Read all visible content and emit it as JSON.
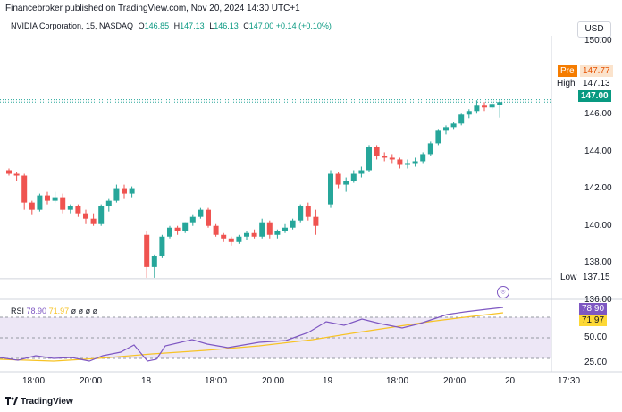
{
  "header": {
    "publisher": "Financebroker published on TradingView.com, Nov 20, 2024 14:30 UTC+1"
  },
  "legend": {
    "symbol": "NVIDIA Corporation, 15, NASDAQ",
    "o_label": "O",
    "o_value": "146.85",
    "h_label": "H",
    "h_value": "147.13",
    "l_label": "L",
    "l_value": "146.13",
    "c_label": "C",
    "c_value": "147.00",
    "change": "+0.14 (+0.10%)"
  },
  "currency": "USD",
  "price_axis": {
    "ticks": [
      "150.00",
      "146.00",
      "144.00",
      "142.00",
      "140.00",
      "138.00",
      "136.00"
    ]
  },
  "price_tags": {
    "pre_label": "Pre",
    "pre_value": "147.77",
    "high_label": "High",
    "high_value": "147.13",
    "last_value": "147.00",
    "low_label": "Low",
    "low_value": "137.15"
  },
  "rsi": {
    "label": "RSI",
    "value": "78.90",
    "ma_value": "71.97",
    "extra": "ø ø ø ø",
    "axis_ticks": [
      "50.00",
      "25.00"
    ],
    "tag_value": "78.90",
    "tag_ma": "71.97",
    "colors": {
      "rsi": "#7e57c2",
      "ma": "#f7c325",
      "band": "#ede7f6"
    }
  },
  "time_axis": {
    "labels": [
      "18:00",
      "20:00",
      "18",
      "18:00",
      "20:00",
      "19",
      "18:00",
      "20:00",
      "20",
      "17:30"
    ]
  },
  "footer": {
    "brand": "TradingView"
  },
  "colors": {
    "up": "#26a69a",
    "down": "#ef5350",
    "pre": "#f57c00",
    "rsi_tag": "#7e57c2",
    "ma_tag": "#fdd835"
  },
  "chart_data": {
    "type": "candlestick",
    "y_range": [
      136,
      150.7
    ],
    "candles": [
      [
        143.2,
        143.3,
        142.9,
        143.0
      ],
      [
        143.0,
        143.1,
        142.6,
        142.9
      ],
      [
        142.9,
        143.0,
        141.0,
        141.4
      ],
      [
        141.4,
        141.5,
        140.7,
        141.0
      ],
      [
        141.0,
        141.9,
        140.9,
        141.8
      ],
      [
        141.8,
        142.0,
        141.3,
        141.5
      ],
      [
        141.5,
        142.0,
        141.4,
        141.7
      ],
      [
        141.7,
        141.9,
        140.8,
        141.0
      ],
      [
        141.0,
        141.3,
        140.8,
        141.2
      ],
      [
        141.2,
        141.3,
        140.6,
        140.8
      ],
      [
        140.8,
        141.0,
        140.2,
        140.5
      ],
      [
        140.5,
        140.8,
        140.1,
        140.2
      ],
      [
        140.2,
        141.3,
        140.1,
        141.2
      ],
      [
        141.2,
        141.6,
        140.9,
        141.5
      ],
      [
        141.5,
        142.4,
        141.4,
        142.2
      ],
      [
        142.2,
        142.4,
        141.6,
        141.9
      ],
      [
        141.9,
        142.3,
        141.7,
        142.2
      ],
      [
        139.6,
        139.8,
        137.2,
        137.8
      ],
      [
        137.8,
        138.5,
        137.2,
        138.4
      ],
      [
        138.4,
        139.6,
        138.3,
        139.5
      ],
      [
        139.5,
        140.1,
        139.4,
        140.0
      ],
      [
        140.0,
        140.1,
        139.6,
        139.8
      ],
      [
        139.8,
        140.3,
        139.7,
        140.3
      ],
      [
        140.3,
        140.7,
        140.1,
        140.6
      ],
      [
        140.6,
        141.1,
        140.5,
        141.0
      ],
      [
        141.0,
        141.1,
        140.0,
        140.1
      ],
      [
        140.1,
        140.2,
        139.5,
        139.6
      ],
      [
        139.6,
        139.7,
        139.2,
        139.4
      ],
      [
        139.4,
        139.5,
        139.0,
        139.2
      ],
      [
        139.2,
        139.6,
        139.1,
        139.5
      ],
      [
        139.5,
        139.8,
        139.3,
        139.7
      ],
      [
        139.7,
        139.9,
        139.4,
        139.5
      ],
      [
        139.5,
        140.5,
        139.4,
        140.3
      ],
      [
        140.3,
        140.4,
        139.4,
        139.6
      ],
      [
        139.6,
        139.9,
        139.4,
        139.8
      ],
      [
        139.8,
        140.2,
        139.7,
        140.0
      ],
      [
        140.0,
        140.5,
        139.9,
        140.4
      ],
      [
        140.4,
        141.3,
        140.3,
        141.2
      ],
      [
        141.2,
        141.4,
        140.4,
        140.6
      ],
      [
        140.6,
        141.0,
        139.6,
        140.1
      ],
      [
        141.3,
        143.2,
        141.1,
        143.0
      ],
      [
        143.0,
        143.1,
        142.2,
        142.4
      ],
      [
        142.4,
        142.8,
        142.0,
        142.6
      ],
      [
        142.6,
        143.2,
        142.5,
        143.0
      ],
      [
        143.0,
        143.4,
        142.8,
        143.2
      ],
      [
        143.2,
        144.6,
        143.1,
        144.5
      ],
      [
        144.5,
        144.6,
        143.8,
        144.0
      ],
      [
        144.0,
        144.2,
        143.7,
        143.9
      ],
      [
        143.9,
        144.1,
        143.6,
        143.8
      ],
      [
        143.8,
        143.9,
        143.3,
        143.5
      ],
      [
        143.5,
        143.8,
        143.3,
        143.6
      ],
      [
        143.6,
        143.9,
        143.4,
        143.7
      ],
      [
        143.7,
        144.2,
        143.6,
        144.1
      ],
      [
        144.1,
        144.8,
        144.0,
        144.7
      ],
      [
        144.7,
        145.5,
        144.6,
        145.4
      ],
      [
        145.4,
        145.7,
        145.2,
        145.6
      ],
      [
        145.6,
        145.9,
        145.5,
        145.8
      ],
      [
        145.8,
        146.4,
        145.7,
        146.3
      ],
      [
        146.3,
        146.6,
        146.1,
        146.5
      ],
      [
        146.5,
        147.1,
        146.4,
        146.8
      ],
      [
        146.8,
        147.0,
        146.5,
        146.7
      ],
      [
        146.7,
        147.0,
        146.6,
        146.9
      ],
      [
        146.85,
        147.13,
        146.13,
        147.0
      ]
    ]
  }
}
